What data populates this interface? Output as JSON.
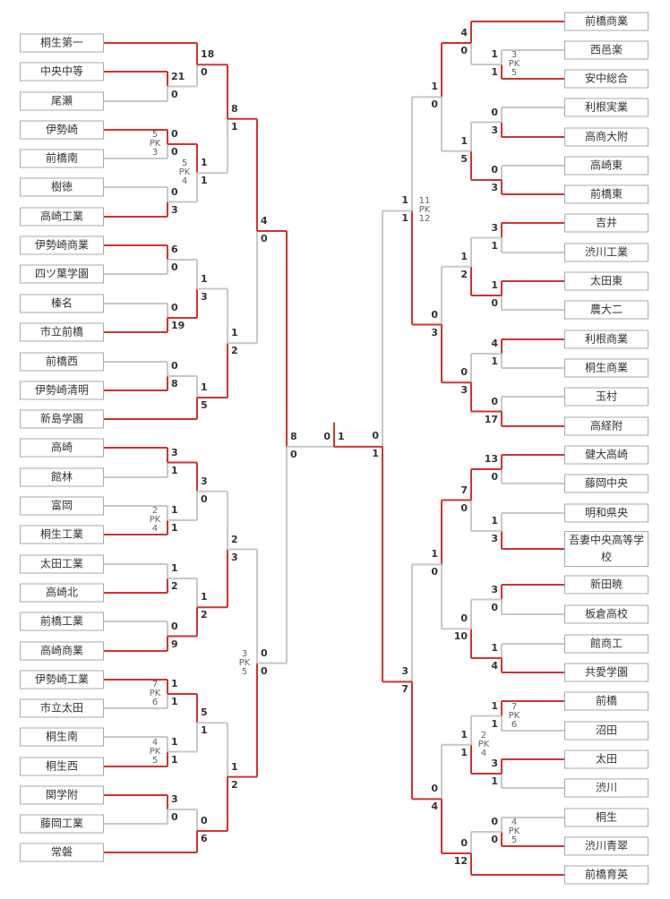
{
  "left_teams": [
    "桐生第一",
    "中央中等",
    "尾瀬",
    "伊勢崎",
    "前橋南",
    "樹徳",
    "高崎工業",
    "伊勢崎商業",
    "四ツ葉学園",
    "榛名",
    "市立前橋",
    "前橋西",
    "伊勢崎清明",
    "新島学園",
    "高崎",
    "館林",
    "富岡",
    "桐生工業",
    "太田工業",
    "高崎北",
    "前橋工業",
    "高崎商業",
    "伊勢崎工業",
    "市立太田",
    "桐生南",
    "桐生西",
    "関学附",
    "藤岡工業",
    "常磐"
  ],
  "right_teams": [
    "前橋商業",
    "西邑楽",
    "安中総合",
    "利根実業",
    "高商大附",
    "高崎東",
    "前橋東",
    "吉井",
    "渋川工業",
    "太田東",
    "農大二",
    "利根商業",
    "桐生商業",
    "玉村",
    "高経附",
    "健大高崎",
    "藤岡中央",
    "明和県央",
    "吾妻中央高等学校",
    "新田暁",
    "板倉高校",
    "館商工",
    "共愛学園",
    "前橋",
    "沼田",
    "太田",
    "渋川",
    "桐生",
    "渋川青翠",
    "前橋育英"
  ],
  "bracket": {
    "left": {
      "scores": [
        8,
        0
      ],
      "top": {
        "scores": [
          4,
          0
        ],
        "top": {
          "scores": [
            8,
            1
          ],
          "top": {
            "scores": [
              18,
              0
            ],
            "top": {
              "team": 0
            },
            "bottom": {
              "scores": [
                21,
                0
              ],
              "top": {
                "team": 1
              },
              "bottom": {
                "team": 2
              }
            }
          },
          "bottom": {
            "scores": [
              1,
              1
            ],
            "pk": [
              5,
              4
            ],
            "top": {
              "scores": [
                0,
                0
              ],
              "pk": [
                5,
                3
              ],
              "top": {
                "team": 3
              },
              "bottom": {
                "team": 4
              }
            },
            "bottom": {
              "scores": [
                0,
                3
              ],
              "top": {
                "team": 5
              },
              "bottom": {
                "team": 6
              }
            }
          }
        },
        "bottom": {
          "scores": [
            1,
            2
          ],
          "top": {
            "scores": [
              1,
              3
            ],
            "top": {
              "scores": [
                6,
                0
              ],
              "top": {
                "team": 7
              },
              "bottom": {
                "team": 8
              }
            },
            "bottom": {
              "scores": [
                0,
                19
              ],
              "top": {
                "team": 9
              },
              "bottom": {
                "team": 10
              }
            }
          },
          "bottom": {
            "scores": [
              1,
              5
            ],
            "top": {
              "scores": [
                0,
                8
              ],
              "top": {
                "team": 11
              },
              "bottom": {
                "team": 12
              }
            },
            "bottom": {
              "team": 13
            }
          }
        }
      },
      "bottom": {
        "scores": [
          0,
          0
        ],
        "pk": [
          3,
          5
        ],
        "top": {
          "scores": [
            2,
            3
          ],
          "top": {
            "scores": [
              3,
              0
            ],
            "top": {
              "scores": [
                3,
                1
              ],
              "top": {
                "team": 14
              },
              "bottom": {
                "team": 15
              }
            },
            "bottom": {
              "scores": [
                1,
                1
              ],
              "pk": [
                2,
                4
              ],
              "top": {
                "team": 16
              },
              "bottom": {
                "team": 17
              }
            }
          },
          "bottom": {
            "scores": [
              1,
              2
            ],
            "top": {
              "scores": [
                1,
                2
              ],
              "top": {
                "team": 18
              },
              "bottom": {
                "team": 19
              }
            },
            "bottom": {
              "scores": [
                0,
                9
              ],
              "top": {
                "team": 20
              },
              "bottom": {
                "team": 21
              }
            }
          }
        },
        "bottom": {
          "scores": [
            1,
            2
          ],
          "top": {
            "scores": [
              5,
              1
            ],
            "top": {
              "scores": [
                1,
                1
              ],
              "pk": [
                7,
                6
              ],
              "top": {
                "team": 22
              },
              "bottom": {
                "team": 23
              }
            },
            "bottom": {
              "scores": [
                1,
                1
              ],
              "pk": [
                4,
                5
              ],
              "top": {
                "team": 24
              },
              "bottom": {
                "team": 25
              }
            }
          },
          "bottom": {
            "scores": [
              0,
              6
            ],
            "top": {
              "scores": [
                3,
                0
              ],
              "top": {
                "team": 26
              },
              "bottom": {
                "team": 27
              }
            },
            "bottom": {
              "team": 28
            }
          }
        }
      }
    },
    "right": {
      "scores": [
        0,
        1
      ],
      "top": {
        "scores": [
          1,
          1
        ],
        "pk": [
          11,
          12
        ],
        "top": {
          "scores": [
            1,
            0
          ],
          "top": {
            "scores": [
              4,
              0
            ],
            "top": {
              "team": 0
            },
            "bottom": {
              "scores": [
                1,
                1
              ],
              "pk": [
                3,
                5
              ],
              "top": {
                "team": 1
              },
              "bottom": {
                "team": 2
              }
            }
          },
          "bottom": {
            "scores": [
              1,
              5
            ],
            "top": {
              "scores": [
                0,
                3
              ],
              "top": {
                "team": 3
              },
              "bottom": {
                "team": 4
              }
            },
            "bottom": {
              "scores": [
                0,
                3
              ],
              "top": {
                "team": 5
              },
              "bottom": {
                "team": 6
              }
            }
          }
        },
        "bottom": {
          "scores": [
            0,
            3
          ],
          "top": {
            "scores": [
              1,
              2
            ],
            "top": {
              "scores": [
                3,
                1
              ],
              "top": {
                "team": 7
              },
              "bottom": {
                "team": 8
              }
            },
            "bottom": {
              "scores": [
                1,
                0
              ],
              "top": {
                "team": 9
              },
              "bottom": {
                "team": 10
              }
            }
          },
          "bottom": {
            "scores": [
              0,
              3
            ],
            "top": {
              "scores": [
                4,
                1
              ],
              "top": {
                "team": 11
              },
              "bottom": {
                "team": 12
              }
            },
            "bottom": {
              "scores": [
                0,
                17
              ],
              "top": {
                "team": 13
              },
              "bottom": {
                "team": 14
              }
            }
          }
        }
      },
      "bottom": {
        "scores": [
          3,
          7
        ],
        "top": {
          "scores": [
            1,
            0
          ],
          "top": {
            "scores": [
              7,
              0
            ],
            "top": {
              "scores": [
                13,
                0
              ],
              "top": {
                "team": 15
              },
              "bottom": {
                "team": 16
              }
            },
            "bottom": {
              "scores": [
                1,
                3
              ],
              "top": {
                "team": 17
              },
              "bottom": {
                "team": 18
              }
            }
          },
          "bottom": {
            "scores": [
              0,
              10
            ],
            "top": {
              "scores": [
                3,
                0
              ],
              "top": {
                "team": 19
              },
              "bottom": {
                "team": 20
              }
            },
            "bottom": {
              "scores": [
                1,
                4
              ],
              "top": {
                "team": 21
              },
              "bottom": {
                "team": 22
              }
            }
          }
        },
        "bottom": {
          "scores": [
            0,
            4
          ],
          "top": {
            "scores": [
              1,
              1
            ],
            "pk": [
              2,
              4
            ],
            "top": {
              "scores": [
                1,
                1
              ],
              "pk": [
                7,
                6
              ],
              "top": {
                "team": 23
              },
              "bottom": {
                "team": 24
              }
            },
            "bottom": {
              "scores": [
                3,
                1
              ],
              "top": {
                "team": 25
              },
              "bottom": {
                "team": 26
              }
            }
          },
          "bottom": {
            "scores": [
              0,
              12
            ],
            "top": {
              "scores": [
                0,
                0
              ],
              "pk": [
                4,
                5
              ],
              "top": {
                "team": 27
              },
              "bottom": {
                "team": 28
              }
            },
            "bottom": {
              "team": 29
            }
          }
        }
      }
    }
  },
  "final": {
    "left_score": 0,
    "right_score": 1
  },
  "pk_label": "PK",
  "colors": {
    "winner": "#d03333",
    "loser": "#c8c8c8",
    "box_border": "#aaaaaa"
  }
}
